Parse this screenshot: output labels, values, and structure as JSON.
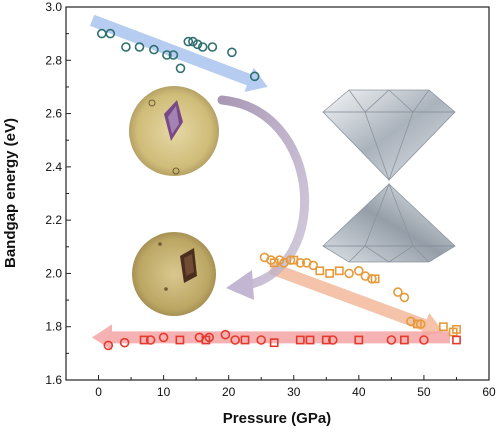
{
  "chart_data": {
    "type": "scatter",
    "title": "",
    "xlabel": "Pressure (GPa)",
    "ylabel": "Bandgap energy (eV)",
    "xlim": [
      -5,
      60
    ],
    "ylim": [
      1.6,
      3.0
    ],
    "xticks": [
      0,
      10,
      20,
      30,
      40,
      50,
      60
    ],
    "yticks": [
      1.6,
      1.8,
      2.0,
      2.2,
      2.4,
      2.6,
      2.8,
      3.0
    ],
    "grid": false,
    "legend": "none",
    "series": [
      {
        "marker": "circle",
        "color": "#2f6f6f",
        "points": [
          [
            0.5,
            2.9
          ],
          [
            1.8,
            2.9
          ],
          [
            4.2,
            2.85
          ],
          [
            6.3,
            2.85
          ],
          [
            8.5,
            2.84
          ],
          [
            10.5,
            2.82
          ],
          [
            11.5,
            2.82
          ],
          [
            12.6,
            2.77
          ],
          [
            13.8,
            2.87
          ],
          [
            14.5,
            2.87
          ],
          [
            15.2,
            2.86
          ],
          [
            16.0,
            2.85
          ],
          [
            17.5,
            2.85
          ],
          [
            20.5,
            2.83
          ],
          [
            24.0,
            2.74
          ]
        ]
      },
      {
        "marker": "circle",
        "color": "#e69a3a",
        "points": [
          [
            25.5,
            2.06
          ],
          [
            26.5,
            2.05
          ],
          [
            27.8,
            2.05
          ],
          [
            28.5,
            2.04
          ],
          [
            29.5,
            2.05
          ],
          [
            31.0,
            2.04
          ],
          [
            32.0,
            2.04
          ],
          [
            33.0,
            2.03
          ],
          [
            38.5,
            2.0
          ],
          [
            40.0,
            2.01
          ],
          [
            41.0,
            1.99
          ],
          [
            42.0,
            1.98
          ],
          [
            46.0,
            1.93
          ],
          [
            47.0,
            1.91
          ],
          [
            48.0,
            1.82
          ],
          [
            49.5,
            1.81
          ]
        ]
      },
      {
        "marker": "square",
        "color": "#e69a3a",
        "points": [
          [
            27.0,
            2.04
          ],
          [
            30.0,
            2.05
          ],
          [
            34.0,
            2.01
          ],
          [
            35.5,
            2.0
          ],
          [
            37.0,
            2.01
          ],
          [
            42.5,
            1.98
          ],
          [
            49.0,
            1.81
          ],
          [
            53.0,
            1.8
          ],
          [
            54.5,
            1.78
          ],
          [
            55.0,
            1.79
          ]
        ]
      },
      {
        "marker": "circle",
        "color": "#e23b2e",
        "points": [
          [
            1.5,
            1.73
          ],
          [
            4.0,
            1.74
          ],
          [
            8.0,
            1.75
          ],
          [
            10.0,
            1.76
          ],
          [
            15.5,
            1.76
          ],
          [
            17.0,
            1.76
          ],
          [
            19.5,
            1.77
          ],
          [
            21.0,
            1.75
          ],
          [
            25.0,
            1.75
          ],
          [
            36.0,
            1.75
          ],
          [
            45.0,
            1.75
          ],
          [
            50.0,
            1.75
          ]
        ]
      },
      {
        "marker": "square",
        "color": "#e23b2e",
        "points": [
          [
            7.0,
            1.75
          ],
          [
            12.5,
            1.75
          ],
          [
            16.5,
            1.75
          ],
          [
            22.5,
            1.75
          ],
          [
            27.0,
            1.74
          ],
          [
            31.0,
            1.75
          ],
          [
            32.5,
            1.75
          ],
          [
            35.0,
            1.75
          ],
          [
            40.0,
            1.75
          ],
          [
            47.0,
            1.75
          ],
          [
            55.0,
            1.75
          ]
        ]
      }
    ],
    "trend_arrows": [
      {
        "color": "#a9c4ee",
        "from": [
          -1.0,
          2.95
        ],
        "to": [
          26.0,
          2.7
        ]
      },
      {
        "color": "#f2b89a",
        "from": [
          26.5,
          2.02
        ],
        "to": [
          53.0,
          1.78
        ]
      },
      {
        "color": "#f4a4a4",
        "from": [
          54.0,
          1.76
        ],
        "to": [
          -1.0,
          1.76
        ]
      }
    ]
  },
  "decorations": {
    "curved_arrow": "gray-purple-fading-arrow",
    "inset_photos": [
      "crystal-photo-high-gap",
      "crystal-photo-low-gap"
    ],
    "illustration": "diamond-anvil-cell-icon"
  }
}
